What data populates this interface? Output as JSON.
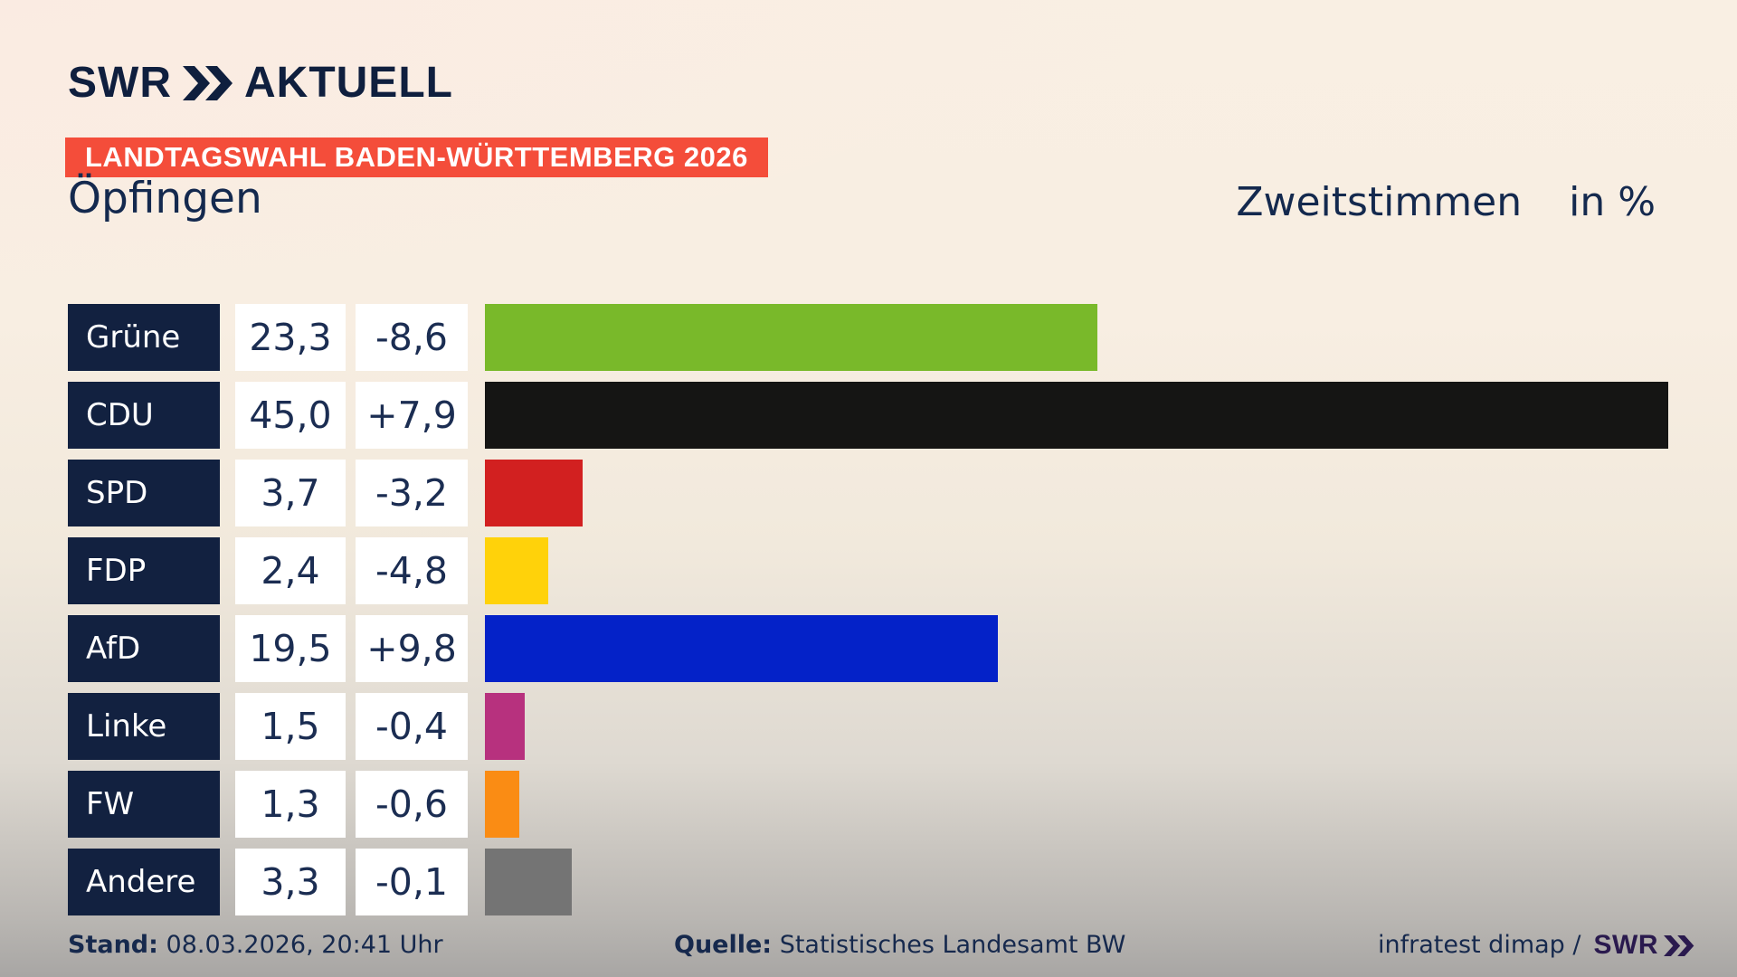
{
  "logo": {
    "brand": "SWR",
    "suffix": "AKTUELL"
  },
  "banner": {
    "text": "LANDTAGSWAHL BADEN-WÜRTTEMBERG 2026",
    "bg": "#f44d3a"
  },
  "title": {
    "location": "Öpfingen",
    "measure": "Zweitstimmen",
    "unit": "in %"
  },
  "chart_data": {
    "type": "bar",
    "orientation": "horizontal",
    "title": "Landtagswahl Baden-Württemberg 2026 — Öpfingen",
    "value_label": "Zweitstimmen in %",
    "axis_max": 45.0,
    "grid": false,
    "rows": [
      {
        "party": "Grüne",
        "value": "23,3",
        "value_num": 23.3,
        "change": "-8,6",
        "change_num": -8.6,
        "color": "#79b92a"
      },
      {
        "party": "CDU",
        "value": "45,0",
        "value_num": 45.0,
        "change": "+7,9",
        "change_num": 7.9,
        "color": "#151514"
      },
      {
        "party": "SPD",
        "value": "3,7",
        "value_num": 3.7,
        "change": "-3,2",
        "change_num": -3.2,
        "color": "#d22020"
      },
      {
        "party": "FDP",
        "value": "2,4",
        "value_num": 2.4,
        "change": "-4,8",
        "change_num": -4.8,
        "color": "#ffd20a"
      },
      {
        "party": "AfD",
        "value": "19,5",
        "value_num": 19.5,
        "change": "+9,8",
        "change_num": 9.8,
        "color": "#0422c8"
      },
      {
        "party": "Linke",
        "value": "1,5",
        "value_num": 1.5,
        "change": "-0,4",
        "change_num": -0.4,
        "color": "#b7317e"
      },
      {
        "party": "FW",
        "value": "1,3",
        "value_num": 1.3,
        "change": "-0,6",
        "change_num": -0.6,
        "color": "#fa8c14"
      },
      {
        "party": "Andere",
        "value": "3,3",
        "value_num": 3.3,
        "change": "-0,1",
        "change_num": -0.1,
        "color": "#747474"
      }
    ]
  },
  "footer": {
    "stand_label": "Stand:",
    "stand_value": "08.03.2026, 20:41 Uhr",
    "quelle_label": "Quelle:",
    "quelle_value": "Statistisches Landesamt BW",
    "credit": "infratest dimap /",
    "credit_brand": "SWR"
  },
  "colors": {
    "navy": "#122140",
    "text_navy": "#1b2d52",
    "banner_red": "#f44d3a",
    "credit_purple": "#2a1a4e",
    "background_top": "#f9efe3",
    "background_bottom": "#a8a6a4"
  }
}
